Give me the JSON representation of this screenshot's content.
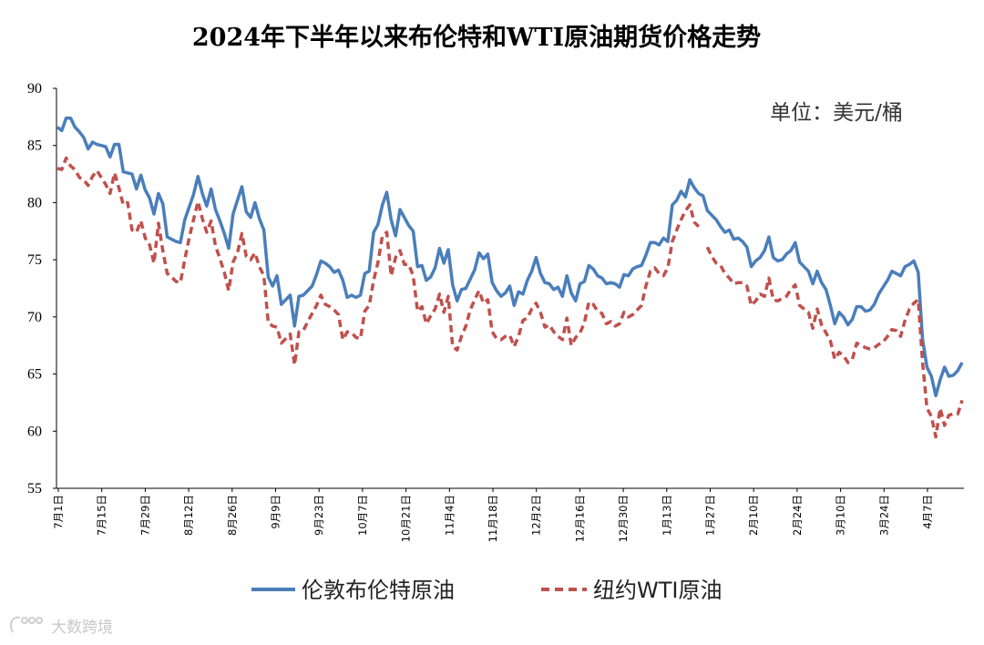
{
  "chart_data": {
    "type": "line",
    "title": "2024年下半年以来布伦特和WTI原油期货价格走势",
    "unit_label": "单位：美元/桶",
    "ylim": [
      55,
      90
    ],
    "yticks": [
      "90",
      "85",
      "80",
      "75",
      "70",
      "65",
      "60",
      "55"
    ],
    "xticks": [
      "7月1日",
      "7月15日",
      "7月29日",
      "8月12日",
      "8月26日",
      "9月9日",
      "9月23日",
      "10月7日",
      "10月21日",
      "11月4日",
      "11月18日",
      "12月2日",
      "12月16日",
      "12月30日",
      "1月13日",
      "1月27日",
      "2月10日",
      "2月24日",
      "3月10日",
      "3月24日",
      "4月7日"
    ],
    "grid": false,
    "legend_position": "bottom",
    "series": [
      {
        "name": "伦敦布伦特原油",
        "color": "#4a7ebb",
        "dash": "solid",
        "values": [
          86.6,
          86.3,
          87.4,
          87.4,
          86.6,
          86.2,
          85.7,
          84.7,
          85.3,
          85.1,
          85.0,
          84.9,
          84.0,
          85.1,
          85.1,
          82.7,
          82.6,
          82.5,
          81.2,
          82.4,
          81.1,
          80.4,
          79.0,
          80.8,
          79.9,
          77.0,
          76.8,
          76.6,
          76.5,
          78.5,
          79.6,
          80.7,
          82.3,
          80.8,
          79.7,
          81.2,
          79.4,
          78.4,
          77.3,
          76.0,
          79.0,
          80.2,
          81.4,
          79.2,
          78.7,
          80.0,
          78.6,
          77.6,
          73.5,
          72.7,
          73.6,
          71.1,
          71.5,
          71.9,
          69.2,
          71.8,
          71.9,
          72.3,
          72.7,
          73.7,
          74.9,
          74.7,
          74.4,
          73.9,
          74.1,
          73.2,
          71.7,
          71.9,
          71.7,
          71.9,
          73.8,
          74.0,
          77.4,
          78.1,
          79.8,
          80.9,
          78.5,
          77.1,
          79.4,
          78.7,
          78.0,
          77.5,
          74.4,
          74.5,
          73.2,
          73.5,
          74.3,
          76.0,
          74.7,
          75.9,
          72.8,
          71.4,
          72.4,
          72.5,
          73.3,
          74.1,
          75.6,
          75.1,
          75.5,
          73.0,
          72.3,
          71.8,
          72.1,
          72.7,
          71.0,
          72.2,
          72.0,
          73.2,
          74.0,
          75.2,
          73.8,
          73.0,
          72.9,
          72.4,
          72.6,
          71.8,
          73.6,
          72.1,
          71.4,
          72.9,
          73.1,
          74.5,
          74.2,
          73.6,
          73.4,
          72.9,
          73.0,
          72.9,
          72.6,
          73.7,
          73.6,
          74.2,
          74.4,
          74.5,
          75.4,
          76.5,
          76.5,
          76.3,
          76.9,
          76.6,
          79.8,
          80.2,
          81.0,
          80.5,
          82.0,
          81.3,
          80.8,
          80.6,
          79.3,
          78.9,
          78.5,
          77.9,
          77.4,
          77.6,
          76.8,
          76.9,
          76.6,
          76.1,
          74.4,
          74.9,
          75.2,
          75.8,
          77.0,
          75.2,
          74.9,
          75.0,
          75.5,
          75.8,
          76.5,
          74.8,
          74.4,
          74.0,
          72.9,
          74.0,
          73.0,
          72.4,
          71.0,
          69.4,
          70.4,
          70.0,
          69.3,
          69.8,
          70.9,
          70.9,
          70.5,
          70.6,
          71.1,
          72.0,
          72.6,
          73.2,
          74.0,
          73.8,
          73.6,
          74.4,
          74.6,
          74.9,
          73.9,
          68.0,
          65.6,
          64.8,
          63.1,
          64.5,
          65.6,
          64.8,
          64.9,
          65.3,
          66.0
        ]
      },
      {
        "name": "纽约WTI原油",
        "color": "#c0504d",
        "dash": "dashed",
        "values": [
          83.0,
          82.9,
          83.9,
          83.2,
          82.9,
          82.2,
          82.0,
          81.5,
          82.3,
          82.8,
          82.2,
          81.6,
          80.8,
          82.6,
          81.3,
          79.8,
          80.0,
          77.6,
          77.4,
          78.4,
          76.9,
          76.3,
          74.7,
          78.2,
          75.8,
          73.8,
          73.5,
          73.1,
          73.0,
          75.0,
          76.9,
          78.5,
          80.1,
          78.6,
          77.4,
          78.4,
          76.2,
          75.1,
          73.9,
          72.3,
          74.8,
          75.6,
          77.3,
          75.3,
          75.0,
          75.6,
          74.4,
          73.6,
          69.5,
          69.2,
          69.1,
          67.7,
          68.1,
          68.5,
          65.8,
          68.7,
          68.8,
          69.6,
          70.3,
          71.0,
          71.9,
          71.1,
          70.9,
          70.6,
          70.2,
          68.0,
          68.7,
          68.6,
          68.2,
          68.1,
          70.5,
          71.0,
          73.2,
          74.8,
          77.1,
          77.4,
          73.6,
          75.2,
          75.8,
          74.6,
          74.6,
          73.6,
          70.5,
          70.9,
          69.4,
          70.1,
          70.7,
          72.0,
          70.4,
          71.8,
          67.4,
          67.1,
          68.3,
          69.2,
          70.6,
          71.5,
          72.3,
          71.2,
          71.5,
          68.7,
          68.1,
          68.0,
          68.3,
          68.4,
          67.4,
          68.3,
          69.7,
          69.9,
          70.7,
          71.2,
          70.4,
          69.1,
          69.3,
          68.7,
          68.3,
          68.0,
          69.9,
          67.5,
          68.2,
          68.6,
          69.5,
          71.3,
          71.1,
          70.5,
          70.3,
          69.4,
          69.6,
          69.2,
          69.4,
          70.4,
          70.0,
          70.2,
          70.6,
          71.0,
          72.7,
          74.0,
          74.3,
          73.8,
          73.6,
          74.3,
          76.6,
          77.6,
          78.5,
          79.3,
          79.8,
          78.3,
          77.9,
          null,
          76.1,
          75.3,
          74.7,
          74.5,
          73.8,
          73.4,
          72.9,
          73.0,
          73.0,
          72.7,
          71.0,
          71.4,
          72.0,
          71.8,
          73.4,
          71.5,
          71.4,
          71.6,
          71.8,
          72.4,
          72.8,
          71.0,
          70.7,
          70.4,
          69.0,
          70.7,
          69.3,
          68.6,
          67.9,
          66.3,
          66.9,
          66.6,
          66.0,
          66.3,
          67.7,
          67.5,
          67.3,
          67.2,
          67.3,
          67.6,
          67.8,
          68.3,
          68.9,
          68.8,
          68.3,
          69.7,
          70.7,
          71.2,
          71.5,
          66.0,
          62.0,
          61.3,
          59.5,
          62.0,
          60.5,
          61.4,
          61.5,
          61.5,
          62.7
        ]
      }
    ]
  },
  "watermark": "大数跨境"
}
